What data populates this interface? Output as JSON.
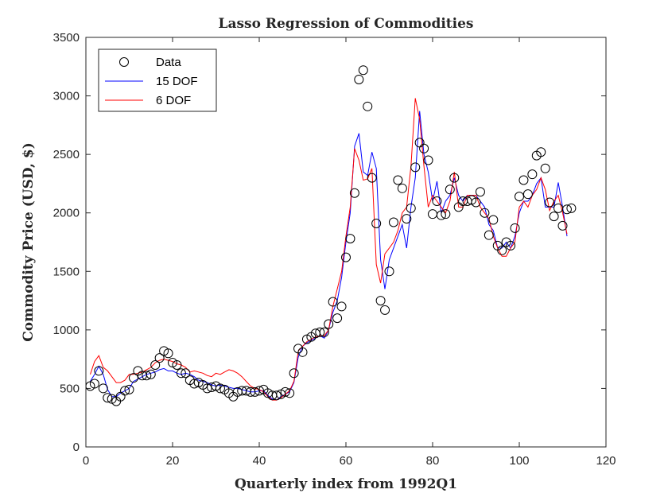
{
  "chart_data": {
    "type": "line",
    "title": "Lasso Regression of Commodities",
    "xlabel": "Quarterly index from 1992Q1",
    "ylabel": "Commodity Price (USD, $)",
    "xlim": [
      0,
      120
    ],
    "ylim": [
      0,
      3500
    ],
    "xticks": [
      0,
      20,
      40,
      60,
      80,
      100,
      120
    ],
    "yticks": [
      0,
      500,
      1000,
      1500,
      2000,
      2500,
      3000,
      3500
    ],
    "grid": false,
    "legend_position": "top-left",
    "series": [
      {
        "name": "Data",
        "style": "markers",
        "color": "#000000",
        "x": [
          1,
          2,
          3,
          4,
          5,
          6,
          7,
          8,
          9,
          10,
          11,
          12,
          13,
          14,
          15,
          16,
          17,
          18,
          19,
          20,
          21,
          22,
          23,
          24,
          25,
          26,
          27,
          28,
          29,
          30,
          31,
          32,
          33,
          34,
          35,
          36,
          37,
          38,
          39,
          40,
          41,
          42,
          43,
          44,
          45,
          46,
          47,
          48,
          49,
          50,
          51,
          52,
          53,
          54,
          55,
          56,
          57,
          58,
          59,
          60,
          61,
          62,
          63,
          64,
          65,
          66,
          67,
          68,
          69,
          70,
          71,
          72,
          73,
          74,
          75,
          76,
          77,
          78,
          79,
          80,
          81,
          82,
          83,
          84,
          85,
          86,
          87,
          88,
          89,
          90,
          91,
          92,
          93,
          94,
          95,
          96,
          97,
          98,
          99,
          100,
          101,
          102,
          103,
          104,
          105,
          106,
          107,
          108,
          109,
          110,
          111,
          112
        ],
        "y": [
          520,
          540,
          650,
          500,
          420,
          410,
          390,
          430,
          480,
          490,
          590,
          650,
          610,
          610,
          620,
          700,
          760,
          820,
          800,
          720,
          700,
          630,
          630,
          570,
          540,
          550,
          530,
          500,
          510,
          520,
          500,
          490,
          460,
          430,
          470,
          480,
          480,
          470,
          470,
          480,
          490,
          460,
          440,
          440,
          450,
          470,
          460,
          630,
          840,
          810,
          920,
          940,
          970,
          980,
          980,
          1050,
          1240,
          1100,
          1200,
          1620,
          1780,
          2170,
          3140,
          3220,
          2910,
          2300,
          1910,
          1250,
          1170,
          1500,
          1920,
          2280,
          2210,
          1950,
          2040,
          2390,
          2600,
          2550,
          2450,
          1990,
          2100,
          1980,
          1990,
          2200,
          2300,
          2050,
          2100,
          2100,
          2110,
          2090,
          2180,
          2000,
          1810,
          1940,
          1720,
          1680,
          1750,
          1720,
          1870,
          2140,
          2280,
          2160,
          2330,
          2490,
          2520,
          2380,
          2090,
          1970,
          2040,
          1890,
          2030,
          2040
        ]
      },
      {
        "name": "15 DOF",
        "style": "line",
        "color": "#0000ff",
        "x": [
          1,
          2,
          3,
          4,
          5,
          6,
          7,
          8,
          9,
          10,
          11,
          12,
          13,
          14,
          15,
          16,
          17,
          18,
          19,
          20,
          21,
          22,
          23,
          24,
          25,
          26,
          27,
          28,
          29,
          30,
          31,
          32,
          33,
          34,
          35,
          36,
          37,
          38,
          39,
          40,
          41,
          42,
          43,
          44,
          45,
          46,
          47,
          48,
          49,
          50,
          51,
          52,
          53,
          54,
          55,
          56,
          57,
          58,
          59,
          60,
          61,
          62,
          63,
          64,
          65,
          66,
          67,
          68,
          69,
          70,
          71,
          72,
          73,
          74,
          75,
          76,
          77,
          78,
          79,
          80,
          81,
          82,
          83,
          84,
          85,
          86,
          87,
          88,
          89,
          90,
          91,
          92,
          93,
          94,
          95,
          96,
          97,
          98,
          99,
          100,
          101,
          102,
          103,
          104,
          105,
          106,
          107,
          108,
          109,
          110,
          111
        ],
        "y": [
          560,
          620,
          690,
          620,
          490,
          430,
          430,
          460,
          480,
          500,
          560,
          580,
          600,
          620,
          630,
          640,
          660,
          670,
          650,
          650,
          630,
          620,
          630,
          620,
          600,
          570,
          560,
          550,
          530,
          520,
          530,
          520,
          510,
          500,
          500,
          490,
          480,
          470,
          470,
          480,
          480,
          440,
          410,
          400,
          430,
          450,
          470,
          550,
          770,
          860,
          890,
          910,
          930,
          950,
          930,
          1000,
          1150,
          1250,
          1450,
          1750,
          2000,
          2570,
          2680,
          2350,
          2320,
          2520,
          2380,
          1600,
          1350,
          1600,
          1700,
          1800,
          1900,
          1700,
          2050,
          2300,
          2870,
          2500,
          2350,
          2100,
          2270,
          2000,
          2100,
          2150,
          2300,
          2150,
          2100,
          2150,
          2150,
          2150,
          2100,
          2050,
          1900,
          1850,
          1700,
          1700,
          1750,
          1700,
          1800,
          2000,
          2100,
          2100,
          2150,
          2250,
          2300,
          2050,
          2050,
          2050,
          2260,
          2050,
          1800
        ]
      },
      {
        "name": "6 DOF",
        "style": "line",
        "color": "#ff0000",
        "x": [
          1,
          2,
          3,
          4,
          5,
          6,
          7,
          8,
          9,
          10,
          11,
          12,
          13,
          14,
          15,
          16,
          17,
          18,
          19,
          20,
          21,
          22,
          23,
          24,
          25,
          26,
          27,
          28,
          29,
          30,
          31,
          32,
          33,
          34,
          35,
          36,
          37,
          38,
          39,
          40,
          41,
          42,
          43,
          44,
          45,
          46,
          47,
          48,
          49,
          50,
          51,
          52,
          53,
          54,
          55,
          56,
          57,
          58,
          59,
          60,
          61,
          62,
          63,
          64,
          65,
          66,
          67,
          68,
          69,
          70,
          71,
          72,
          73,
          74,
          75,
          76,
          77,
          78,
          79,
          80,
          81,
          82,
          83,
          84,
          85,
          86,
          87,
          88,
          89,
          90,
          91,
          92,
          93,
          94,
          95,
          96,
          97,
          98,
          99,
          100,
          101,
          102,
          103,
          104,
          105,
          106,
          107,
          108,
          109,
          110,
          111
        ],
        "y": [
          620,
          730,
          780,
          680,
          650,
          600,
          550,
          550,
          570,
          620,
          620,
          630,
          640,
          660,
          680,
          720,
          740,
          750,
          740,
          730,
          710,
          700,
          680,
          640,
          650,
          640,
          630,
          610,
          600,
          630,
          620,
          640,
          660,
          650,
          630,
          600,
          560,
          520,
          500,
          490,
          470,
          430,
          400,
          400,
          420,
          450,
          480,
          560,
          820,
          860,
          900,
          920,
          940,
          950,
          950,
          1000,
          1200,
          1350,
          1500,
          1800,
          2050,
          2550,
          2450,
          2280,
          2290,
          2380,
          1560,
          1400,
          1650,
          1700,
          1750,
          1850,
          2000,
          2050,
          2400,
          2980,
          2800,
          2400,
          2050,
          2150,
          2100,
          2050,
          2000,
          2100,
          2350,
          2050,
          2050,
          2150,
          2150,
          2150,
          2050,
          2000,
          1950,
          1800,
          1700,
          1630,
          1630,
          1700,
          1750,
          2050,
          2100,
          2050,
          2150,
          2200,
          2300,
          2200,
          2020,
          2100,
          2150,
          2000,
          1820
        ]
      }
    ]
  }
}
